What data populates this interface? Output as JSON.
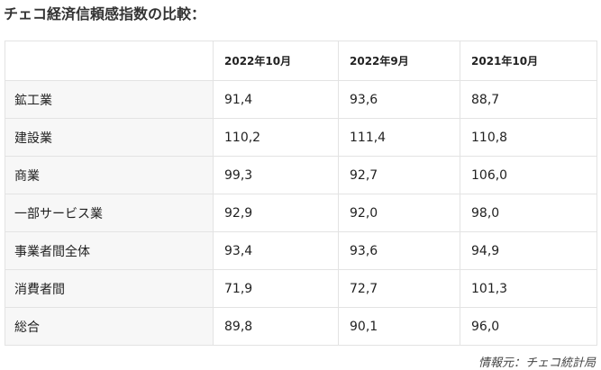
{
  "header": {
    "title": "チェコ経済信頼感指数の比較："
  },
  "table": {
    "columns": [
      "",
      "2022年10月",
      "2022年9月",
      "2021年10月"
    ],
    "rows": [
      [
        "鉱工業",
        "91,4",
        "93,6",
        "88,7"
      ],
      [
        "建設業",
        "110,2",
        "111,4",
        "110,8"
      ],
      [
        "商業",
        "99,3",
        "92,7",
        "106,0"
      ],
      [
        "一部サービス業",
        "92,9",
        "92,0",
        "98,0"
      ],
      [
        "事業者間全体",
        "93,4",
        "93,6",
        "94,9"
      ],
      [
        "消費者間",
        "71,9",
        "72,7",
        "101,3"
      ],
      [
        "総合",
        "89,8",
        "90,1",
        "96,0"
      ]
    ]
  },
  "footer": {
    "source": "情報元：チェコ統計局"
  }
}
